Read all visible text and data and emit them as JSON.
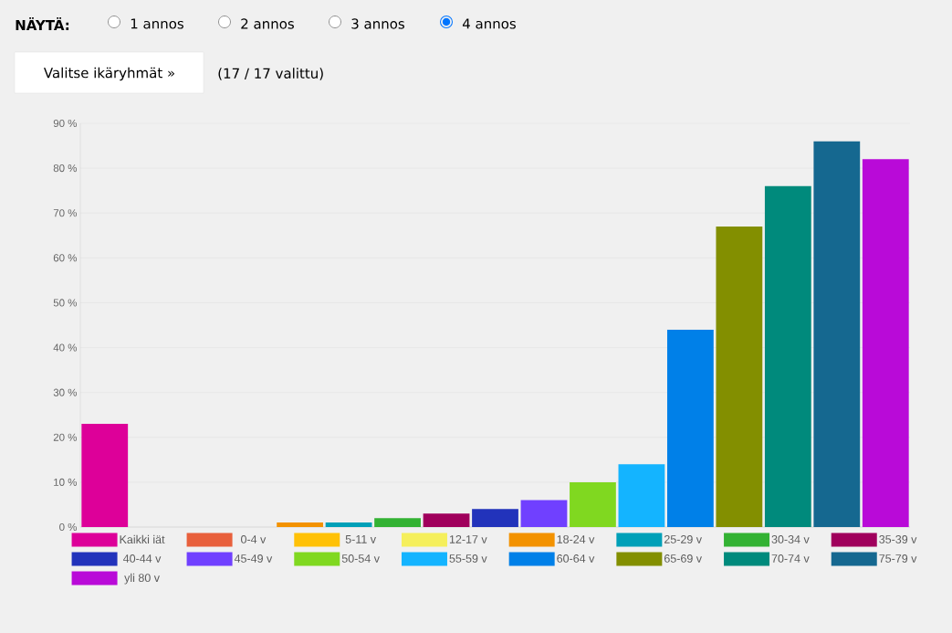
{
  "chart_data": {
    "type": "bar",
    "categories": [
      null
    ],
    "series": [
      {
        "name": "Kaikki iät",
        "color": "#dd0099",
        "values": [
          23
        ]
      },
      {
        "name": "0-4 v",
        "color": "#e8603c",
        "values": [
          0
        ]
      },
      {
        "name": "5-11 v",
        "color": "#ffc107",
        "values": [
          0
        ]
      },
      {
        "name": "12-17 v",
        "color": "#f5ef5c",
        "values": [
          0
        ]
      },
      {
        "name": "18-24 v",
        "color": "#f39200",
        "values": [
          1
        ]
      },
      {
        "name": "25-29 v",
        "color": "#00a0b8",
        "values": [
          1
        ]
      },
      {
        "name": "30-34 v",
        "color": "#33b233",
        "values": [
          2
        ]
      },
      {
        "name": "35-39 v",
        "color": "#a0005c",
        "values": [
          3
        ]
      },
      {
        "name": "40-44 v",
        "color": "#2233bb",
        "values": [
          4
        ]
      },
      {
        "name": "45-49 v",
        "color": "#7040ff",
        "values": [
          6
        ]
      },
      {
        "name": "50-54 v",
        "color": "#80d820",
        "values": [
          10
        ]
      },
      {
        "name": "55-59 v",
        "color": "#14b4ff",
        "values": [
          14
        ]
      },
      {
        "name": "60-64 v",
        "color": "#0080e8",
        "values": [
          44
        ]
      },
      {
        "name": "65-69 v",
        "color": "#838f00",
        "values": [
          67
        ]
      },
      {
        "name": "70-74 v",
        "color": "#008a7c",
        "values": [
          76
        ]
      },
      {
        "name": "75-79 v",
        "color": "#156890",
        "values": [
          86
        ]
      },
      {
        "name": "yli 80 v",
        "color": "#b90ad8",
        "values": [
          82
        ]
      }
    ],
    "ylim": [
      0,
      90
    ],
    "yticks": [
      {
        "value": 0,
        "label": "0 %"
      },
      {
        "value": 10,
        "label": "10 %"
      },
      {
        "value": 20,
        "label": "20 %"
      },
      {
        "value": 30,
        "label": "30 %"
      },
      {
        "value": 40,
        "label": "40 %"
      },
      {
        "value": 50,
        "label": "50 %"
      },
      {
        "value": 60,
        "label": "60 %"
      },
      {
        "value": 70,
        "label": "70 %"
      },
      {
        "value": 80,
        "label": "80 %"
      },
      {
        "value": 90,
        "label": "90 %"
      }
    ],
    "grid": "y",
    "legend": "bottom",
    "tick_labels": "y",
    "annotations": [
      "NÄYTÄ:",
      "1 annos",
      "2 annos",
      "3 annos",
      "4 annos",
      "Valitse ikäryhmät »",
      "(17 / 17 valittu)"
    ]
  }
}
